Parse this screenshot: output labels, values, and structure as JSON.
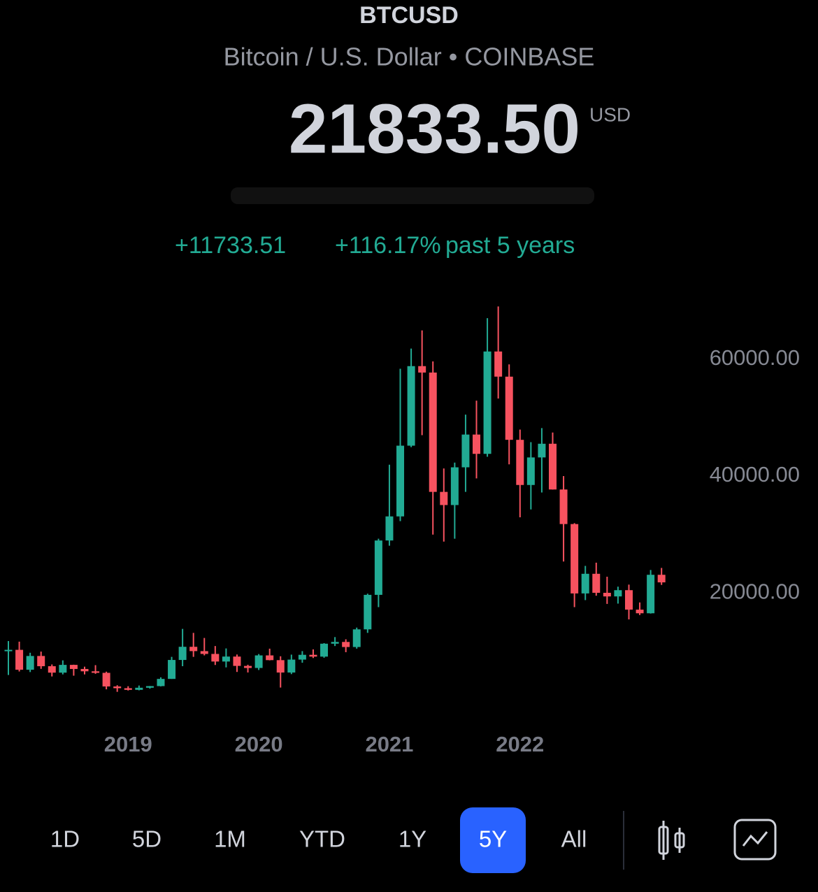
{
  "header": {
    "symbol": "BTCUSD",
    "description": "Bitcoin / U.S. Dollar • COINBASE",
    "price": "21833.50",
    "currency": "USD",
    "change": "+11733.51",
    "change_percent": "+116.17%",
    "period": "past 5 years"
  },
  "chart_data": {
    "type": "candlestick",
    "categories": [
      null,
      null,
      null,
      null,
      null,
      null,
      null,
      null,
      null,
      null,
      null,
      "2019",
      null,
      null,
      null,
      null,
      null,
      null,
      null,
      null,
      null,
      null,
      null,
      "2020",
      null,
      null,
      null,
      null,
      null,
      null,
      null,
      null,
      null,
      null,
      null,
      "2021",
      null,
      null,
      null,
      null,
      null,
      null,
      null,
      null,
      null,
      null,
      null,
      "2022",
      null,
      null,
      null,
      null,
      null,
      null,
      null,
      null,
      null,
      null,
      null,
      null,
      null
    ],
    "open": [
      10100,
      10300,
      6900,
      9250,
      7500,
      6400,
      7730,
      7030,
      6630,
      6370,
      4040,
      3740,
      3460,
      3820,
      4100,
      5330,
      8570,
      10820,
      10080,
      9600,
      8300,
      9150,
      7550,
      7200,
      9350,
      8540,
      6420,
      8630,
      9450,
      9140,
      11350,
      11650,
      10780,
      13800,
      19700,
      28990,
      33110,
      45200,
      58800,
      57700,
      37300,
      35050,
      41500,
      47100,
      43800,
      61300,
      57000,
      46200,
      38480,
      43190,
      45530,
      37710,
      31800,
      19940,
      23300,
      20050,
      19430,
      20500,
      17170,
      16550,
      23130
    ],
    "high": [
      11800,
      11700,
      9800,
      10000,
      7800,
      8500,
      7760,
      7420,
      7680,
      6570,
      4250,
      4080,
      4200,
      4120,
      5600,
      9100,
      13880,
      13200,
      12330,
      10950,
      10540,
      9500,
      7750,
      9580,
      10500,
      9200,
      9480,
      10080,
      10380,
      11450,
      12480,
      12100,
      14100,
      19900,
      29300,
      41950,
      58350,
      61800,
      64900,
      59600,
      41300,
      42300,
      50500,
      52900,
      67000,
      69000,
      59100,
      47950,
      45800,
      48200,
      47450,
      40000,
      31950,
      24650,
      25200,
      22800,
      21100,
      21450,
      18400,
      23950,
      24300
    ],
    "low": [
      6000,
      6600,
      6500,
      7050,
      5750,
      6100,
      5880,
      6100,
      6200,
      3550,
      3120,
      3350,
      3380,
      3670,
      4050,
      5330,
      7500,
      9100,
      9350,
      7710,
      7300,
      6520,
      6430,
      6850,
      8500,
      3850,
      6150,
      8100,
      8900,
      8950,
      10950,
      9900,
      10500,
      13200,
      17600,
      28100,
      32300,
      44950,
      47000,
      30000,
      28800,
      29300,
      37300,
      39600,
      43300,
      53250,
      42000,
      32950,
      34300,
      37200,
      37700,
      25400,
      17600,
      18800,
      19550,
      18150,
      18200,
      15500,
      16250,
      16500,
      21400
    ],
    "close": [
      10300,
      6900,
      9250,
      7500,
      6400,
      7730,
      7030,
      6630,
      6370,
      4040,
      3740,
      3460,
      3820,
      4100,
      5330,
      8570,
      10820,
      10080,
      9600,
      8300,
      9150,
      7550,
      7200,
      9350,
      8540,
      6420,
      8630,
      9450,
      9140,
      11350,
      11650,
      10780,
      13800,
      19700,
      28990,
      33110,
      45200,
      58800,
      57700,
      37300,
      35050,
      41500,
      47100,
      43800,
      61300,
      57000,
      46200,
      38480,
      43190,
      45530,
      37710,
      31800,
      19940,
      23300,
      20050,
      19430,
      20500,
      17170,
      16550,
      23130,
      21833.5
    ],
    "up_color": "#22ab94",
    "down_color": "#f7525f",
    "ylim": [
      -1700,
      70000
    ],
    "yticks": [
      {
        "value": 20000,
        "label": "20000.00"
      },
      {
        "value": 40000,
        "label": "40000.00"
      },
      {
        "value": 60000,
        "label": "60000.00"
      }
    ]
  },
  "toolbar": {
    "ranges": [
      "1D",
      "5D",
      "1M",
      "YTD",
      "1Y",
      "5Y",
      "All"
    ],
    "selected": "5Y"
  }
}
